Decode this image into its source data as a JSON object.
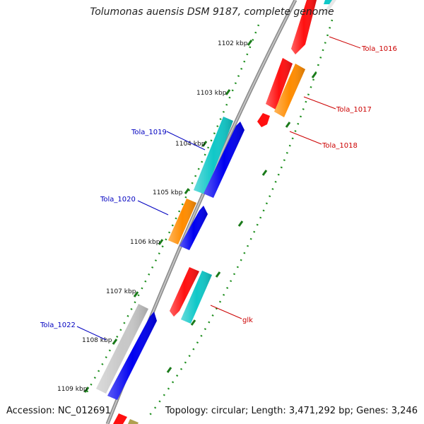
{
  "title": "Tolumonas auensis DSM 9187, complete genome",
  "footer": {
    "accession": "Accession: NC_012691",
    "topology": "Topology: circular; Length: 3,471,292 bp; Genes: 3,246"
  },
  "colors": {
    "backbone": "#8a8a8a",
    "tick_major": "#1a7a1a",
    "tick_minor": "#2a9a2a",
    "label_forward": "#0000c0",
    "label_reverse": "#cc0000"
  },
  "kbp_ticks": [
    "1102 kbp",
    "1103 kbp",
    "1104 kbp",
    "1105 kbp",
    "1106 kbp",
    "1107 kbp",
    "1108 kbp",
    "1109 kbp"
  ],
  "genes": [
    {
      "label": "Tola_1016",
      "strand": "reverse",
      "color": "#ff1010"
    },
    {
      "label": "Tola_1017",
      "strand": "reverse",
      "color": "#ff8c00"
    },
    {
      "label": "Tola_1018",
      "strand": "reverse",
      "color": "#ff1010"
    },
    {
      "label": "Tola_1019",
      "strand": "forward",
      "color": "#10c8c8"
    },
    {
      "label": "Tola_1020",
      "strand": "forward",
      "color": "#ff8c00"
    },
    {
      "label": "glk",
      "strand": "reverse",
      "color": "#10c8c8"
    },
    {
      "label": "Tola_1022",
      "strand": "forward",
      "color": "#c8c8c8"
    }
  ]
}
